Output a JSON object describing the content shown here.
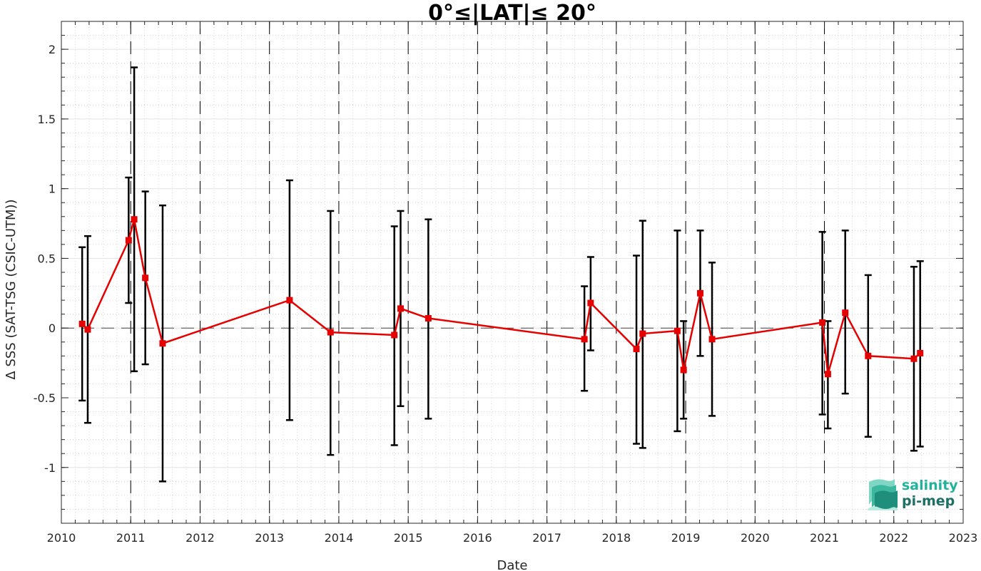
{
  "chart_data": {
    "type": "line",
    "title": "0°≤|LAT|≤ 20°",
    "xlabel": "Date",
    "ylabel": "Δ SSS (SAT-TSG (CSIC-UTM))",
    "xlim": [
      2010,
      2023
    ],
    "ylim": [
      -1.4,
      2.2
    ],
    "x_ticks": [
      "2010",
      "2011",
      "2012",
      "2013",
      "2014",
      "2015",
      "2016",
      "2017",
      "2018",
      "2019",
      "2020",
      "2021",
      "2022",
      "2023"
    ],
    "y_ticks": [
      "-1",
      "-0.5",
      "0",
      "0.5",
      "1",
      "1.5",
      "2"
    ],
    "grid": true,
    "minor_grid": true,
    "year_dashed_lines": [
      2011,
      2012,
      2013,
      2014,
      2015,
      2016,
      2017,
      2018,
      2019,
      2020,
      2021,
      2022
    ],
    "zero_reference_line": true,
    "series": [
      {
        "color": "#e60000",
        "marker": "square",
        "errorbar_color": "#000000",
        "x": [
          2010.3,
          2010.38,
          2010.97,
          2011.05,
          2011.21,
          2011.46,
          2013.29,
          2013.88,
          2014.8,
          2014.89,
          2015.29,
          2017.54,
          2017.63,
          2018.29,
          2018.38,
          2018.88,
          2018.97,
          2019.21,
          2019.38,
          2020.97,
          2021.05,
          2021.3,
          2021.63,
          2022.29,
          2022.38
        ],
        "y": [
          0.03,
          -0.01,
          0.63,
          0.78,
          0.36,
          -0.11,
          0.2,
          -0.03,
          -0.05,
          0.14,
          0.07,
          -0.08,
          0.18,
          -0.15,
          -0.04,
          -0.02,
          -0.3,
          0.25,
          -0.08,
          0.04,
          -0.33,
          0.11,
          -0.2,
          -0.22,
          -0.18
        ],
        "y_low": [
          -0.52,
          -0.68,
          0.18,
          -0.31,
          -0.26,
          -1.1,
          -0.66,
          -0.91,
          -0.84,
          -0.56,
          -0.65,
          -0.45,
          -0.16,
          -0.83,
          -0.86,
          -0.74,
          -0.65,
          -0.2,
          -0.63,
          -0.62,
          -0.72,
          -0.47,
          -0.78,
          -0.88,
          -0.85
        ],
        "y_high": [
          0.58,
          0.66,
          1.08,
          1.87,
          0.98,
          0.88,
          1.06,
          0.84,
          0.73,
          0.84,
          0.78,
          0.3,
          0.51,
          0.52,
          0.77,
          0.7,
          0.05,
          0.7,
          0.47,
          0.69,
          0.05,
          0.7,
          0.38,
          0.44,
          0.48
        ]
      }
    ]
  },
  "logo": {
    "line1": "salinity",
    "line2": "pi-mep",
    "color1": "#20b39a",
    "color2": "#1b6f66"
  }
}
